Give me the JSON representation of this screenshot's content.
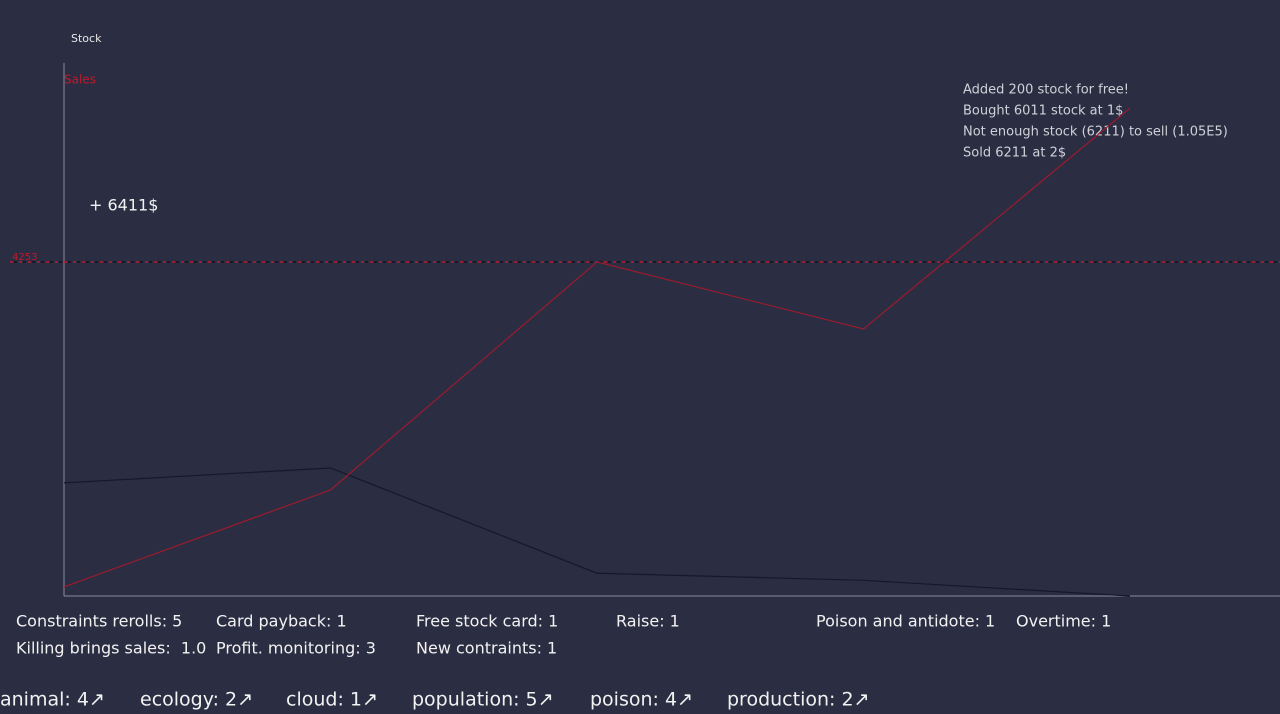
{
  "chart_data": {
    "type": "line",
    "categories": [
      null,
      null,
      null,
      null,
      null
    ],
    "series": [
      {
        "name": "Stock",
        "color": "#16182a",
        "values": [
          1440,
          1630,
          290,
          200,
          0
        ]
      },
      {
        "name": "Sales",
        "color": "#9b1b2e",
        "values": [
          115,
          1350,
          4253,
          3400,
          6212
        ]
      }
    ],
    "ylim": [
      0,
      6786
    ],
    "reference_line": 4253,
    "reference_color": "#c0192c"
  },
  "popup": "+ 6411$",
  "log": [
    "Added 200 stock for free!",
    "Bought 6011 stock at 1$",
    "Not enough stock (6211) to sell (1.05E5)",
    "Sold 6211 at 2$"
  ],
  "stats": [
    [
      "Constraints rerolls: 5",
      "Card payback: 1",
      "Free stock card: 1",
      "Raise: 1",
      "Poison and antidote: 1",
      "Overtime: 1"
    ],
    [
      "Killing brings sales:  1.0",
      "Profit. monitoring: 3",
      "New contraints: 1"
    ]
  ],
  "tags": [
    "animal: 4↗",
    "ecology: 2↗",
    "cloud: 1↗",
    "population: 5↗",
    "poison: 4↗",
    "production: 2↗"
  ]
}
